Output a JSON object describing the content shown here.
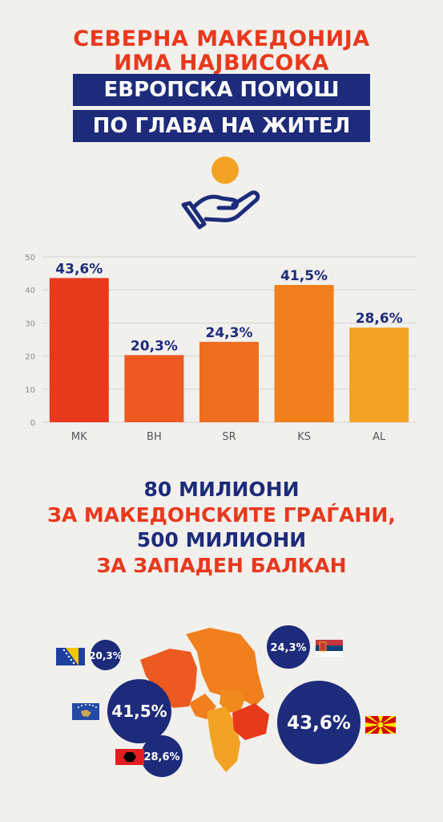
{
  "header": {
    "line1": "СЕВЕРНА МАКЕДОНИЈА",
    "line2": "ИМА НАЈВИСОКА",
    "band1": "ЕВРОПСКА ПОМОШ",
    "band2": "ПО ГЛАВА НА ЖИТЕЛ"
  },
  "icon": "hand-with-coin-icon",
  "chart_data": {
    "type": "bar",
    "categories": [
      "MK",
      "BH",
      "SR",
      "KS",
      "AL"
    ],
    "values": [
      43.6,
      20.3,
      24.3,
      41.5,
      28.6
    ],
    "value_labels": [
      "43,6%",
      "20,3%",
      "24,3%",
      "41,5%",
      "28,6%"
    ],
    "colors": [
      "#e8391d",
      "#ec5a1f",
      "#ef6d1f",
      "#f07f1c",
      "#f2a324"
    ],
    "ylim": [
      0,
      50
    ],
    "yticks": [
      0,
      10,
      20,
      30,
      40,
      50
    ],
    "grid": true,
    "title": "",
    "xlabel": "",
    "ylabel": ""
  },
  "middle": {
    "line1": "80 МИЛИОНИ",
    "line2": "ЗА МАКЕДОНСКИТЕ ГРАЃАНИ,",
    "line3": "500 МИЛИОНИ",
    "line4": "ЗА ЗАПАДЕН БАЛКАН"
  },
  "map": {
    "bh": "20,3%",
    "sr": "24,3%",
    "ks": "41,5%",
    "mk": "43,6%",
    "al": "28,6%",
    "navy": "#1d2b7a"
  }
}
